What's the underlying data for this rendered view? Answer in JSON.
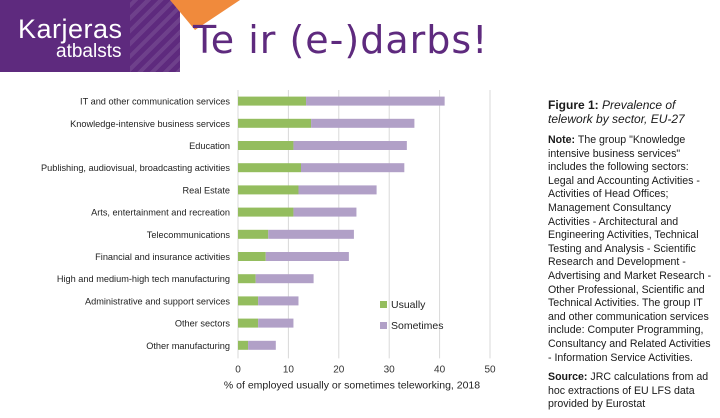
{
  "logo": {
    "line1": "Karjeras",
    "line2": "atbalsts"
  },
  "slide_title": "Te ir (e-)darbs!",
  "figure": {
    "label": "Figure 1:",
    "caption": "Prevalence of telework by sector, EU-27",
    "note_label": "Note:",
    "note_text": "The group \"Knowledge intensive business services\" includes the following sectors: Legal and Accounting Activities - Activities of Head Offices; Management Consultancy Activities - Architectural and Engineering Activities, Technical Testing and Analysis - Scientific Research and Development - Advertising and Market Research - Other Professional, Scientific and Technical Activities. The group IT and other communication services include: Computer Programming, Consultancy and Related Activities - Information Service Activities.",
    "source_label": "Source:",
    "source_text": "JRC calculations from ad hoc extractions of EU LFS data provided by Eurostat"
  },
  "chart_data": {
    "type": "bar",
    "orientation": "horizontal",
    "stacked": true,
    "categories": [
      "IT and other communication services",
      "Knowledge-intensive business services",
      "Education",
      "Publishing, audiovisual, broadcasting activities",
      "Real Estate",
      "Arts, entertainment and recreation",
      "Telecommunications",
      "Financial and insurance activities",
      "High and medium-high tech manufacturing",
      "Administrative and support services",
      "Other sectors",
      "Other manufacturing"
    ],
    "series": [
      {
        "name": "Usually",
        "color": "#94bd5e",
        "values": [
          13.5,
          14.5,
          11,
          12.5,
          12,
          11,
          6,
          5.5,
          3.5,
          4,
          4,
          2
        ]
      },
      {
        "name": "Sometimes",
        "color": "#b1a0c7",
        "values": [
          27.5,
          20.5,
          22.5,
          20.5,
          15.5,
          12.5,
          17,
          16.5,
          11.5,
          8,
          7,
          5.5
        ]
      }
    ],
    "xlabel": "% of employed usually or sometimes teleworking, 2018",
    "xlim": [
      0,
      50
    ],
    "xticks": [
      0,
      10,
      20,
      30,
      40,
      50
    ],
    "grid": true,
    "legend": "bottom-right"
  }
}
